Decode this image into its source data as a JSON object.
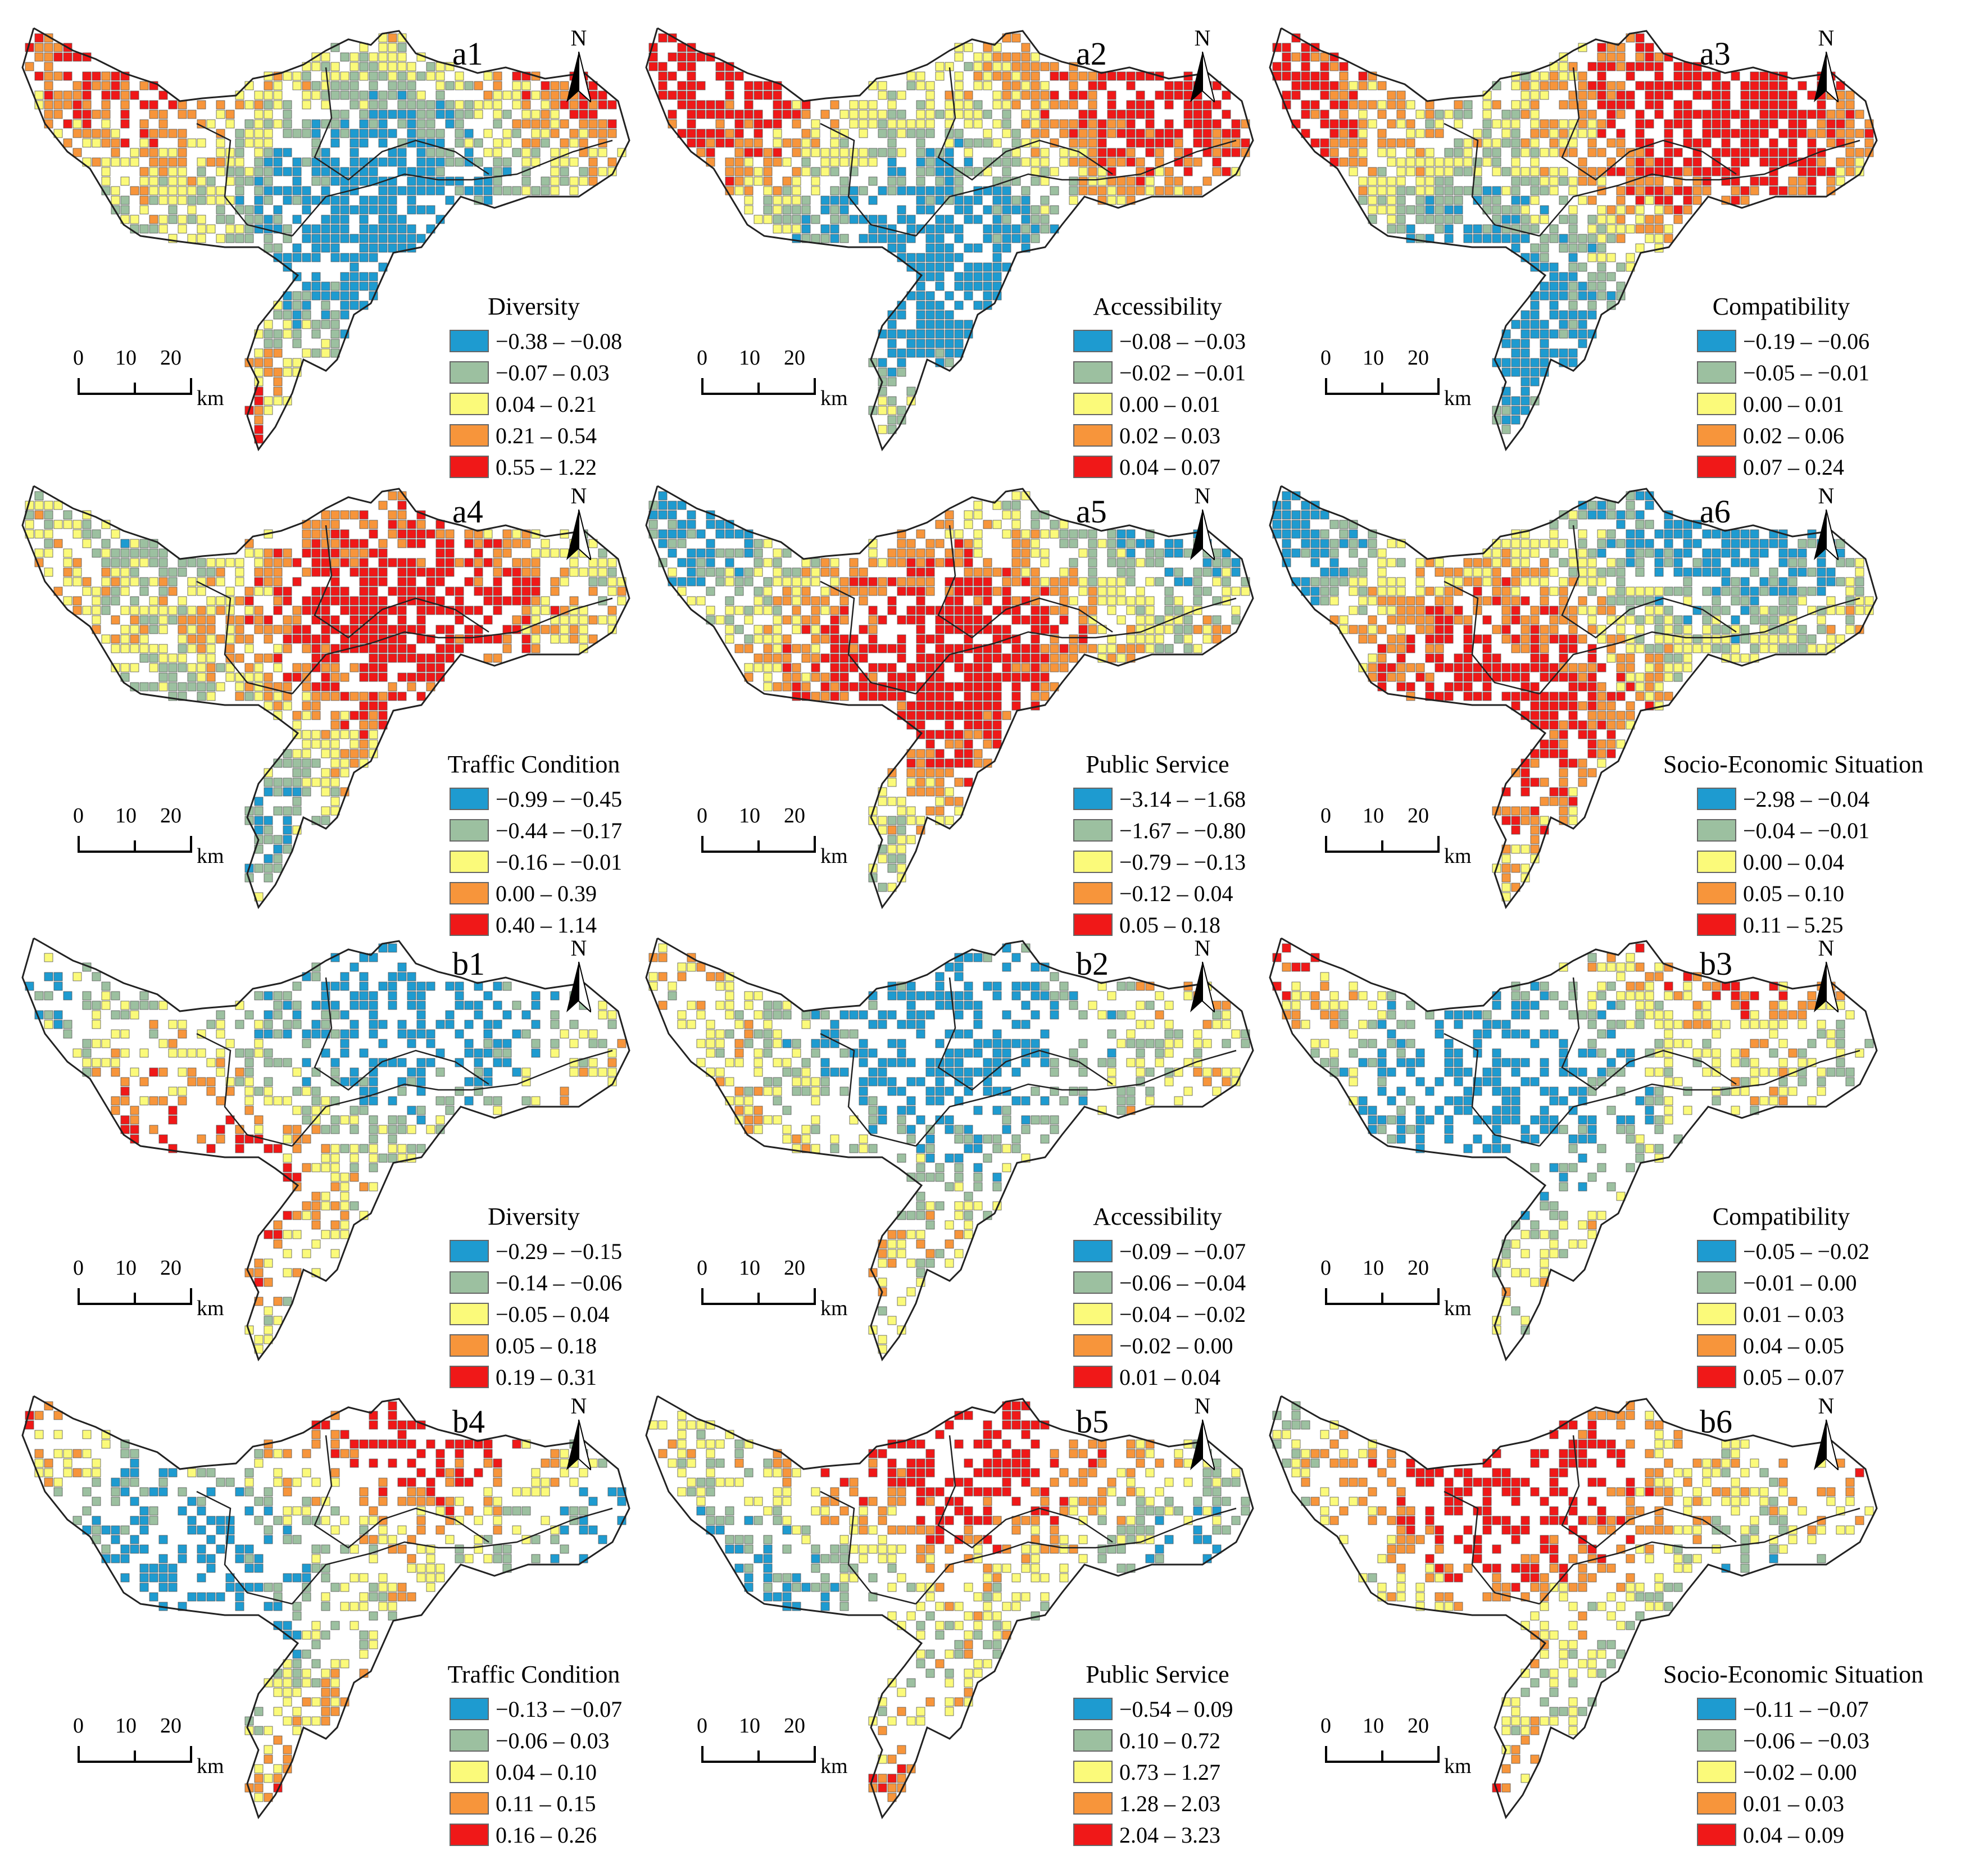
{
  "colors": {
    "blue": "#1e9bd0",
    "green": "#9cc0a0",
    "yellow": "#fbfa7a",
    "orange": "#f7953b",
    "red": "#f01818",
    "outline": "#222222",
    "swatch_border": "#666666"
  },
  "compass_letter": "N",
  "scale": {
    "ticks": [
      "0",
      "10",
      "20"
    ],
    "unit": "km"
  },
  "panels": [
    {
      "id": "a1",
      "variable": "Diversity",
      "classes": [
        "−0.38 – −0.08",
        "−0.07 – 0.03",
        "0.04 – 0.21",
        "0.21 – 0.54",
        "0.55 – 1.22"
      ]
    },
    {
      "id": "a2",
      "variable": "Accessibility",
      "classes": [
        "−0.08 – −0.03",
        "−0.02 – −0.01",
        "0.00 – 0.01",
        "0.02 – 0.03",
        "0.04 – 0.07"
      ]
    },
    {
      "id": "a3",
      "variable": "Compatibility",
      "classes": [
        "−0.19 – −0.06",
        "−0.05 – −0.01",
        "0.00 – 0.01",
        "0.02 – 0.06",
        "0.07 – 0.24"
      ]
    },
    {
      "id": "a4",
      "variable": "Traffic Condition",
      "classes": [
        "−0.99 – −0.45",
        "−0.44 – −0.17",
        "−0.16 – −0.01",
        "0.00 – 0.39",
        "0.40 – 1.14"
      ]
    },
    {
      "id": "a5",
      "variable": "Public Service",
      "classes": [
        "−3.14 – −1.68",
        "−1.67 – −0.80",
        "−0.79 – −0.13",
        "−0.12 – 0.04",
        "0.05 – 0.18"
      ]
    },
    {
      "id": "a6",
      "variable": "Socio-Economic Situation",
      "classes": [
        "−2.98 – −0.04",
        "−0.04 – −0.01",
        "0.00 – 0.04",
        "0.05 – 0.10",
        "0.11 – 5.25"
      ]
    },
    {
      "id": "b1",
      "variable": "Diversity",
      "classes": [
        "−0.29 – −0.15",
        "−0.14 – −0.06",
        "−0.05 – 0.04",
        "0.05 – 0.18",
        "0.19 – 0.31"
      ]
    },
    {
      "id": "b2",
      "variable": "Accessibility",
      "classes": [
        "−0.09 – −0.07",
        "−0.06 – −0.04",
        "−0.04 – −0.02",
        "−0.02 – 0.00",
        "0.01 – 0.04"
      ]
    },
    {
      "id": "b3",
      "variable": "Compatibility",
      "classes": [
        "−0.05 – −0.02",
        "−0.01 – 0.00",
        "0.01 – 0.03",
        "0.04 – 0.05",
        "0.05 – 0.07"
      ]
    },
    {
      "id": "b4",
      "variable": "Traffic Condition",
      "classes": [
        "−0.13 – −0.07",
        "−0.06 – 0.03",
        "0.04 – 0.10",
        "0.11 – 0.15",
        "0.16 – 0.26"
      ]
    },
    {
      "id": "b5",
      "variable": "Public Service",
      "classes": [
        "−0.54 – 0.09",
        "0.10 – 0.72",
        "0.73 – 1.27",
        "1.28 – 2.03",
        "2.04 – 3.23"
      ]
    },
    {
      "id": "b6",
      "variable": "Socio-Economic Situation",
      "classes": [
        "−0.11 – −0.07",
        "−0.06 – −0.03",
        "−0.02 – 0.00",
        "0.01 – 0.03",
        "0.04 – 0.09"
      ]
    }
  ]
}
